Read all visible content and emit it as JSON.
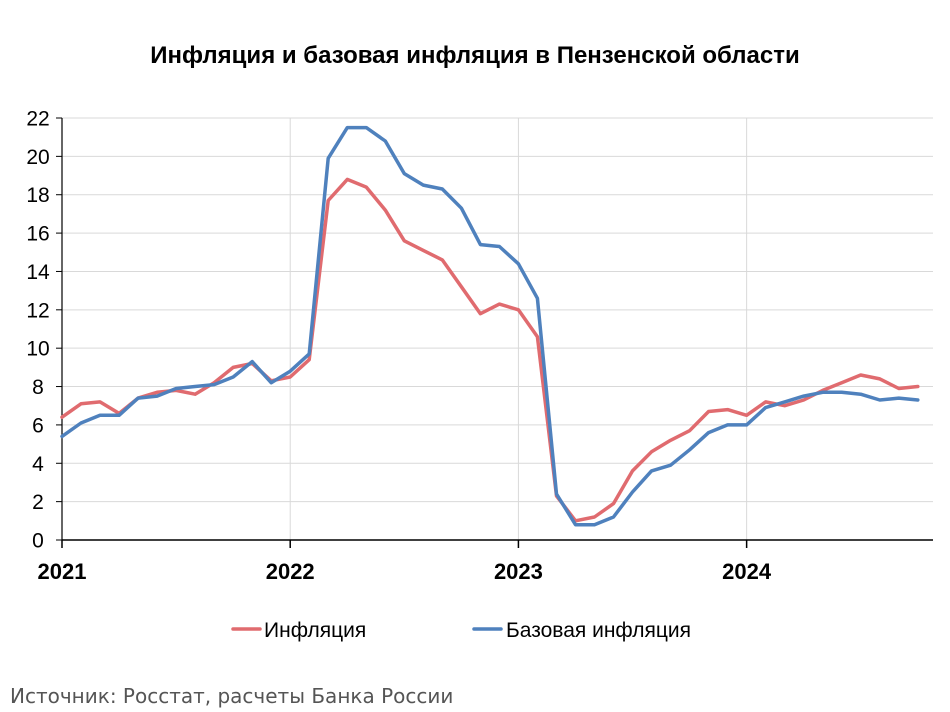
{
  "chart_data": {
    "type": "line",
    "title": "Инфляция и базовая инфляция в Пензенской области",
    "xlabel": "",
    "ylabel": "",
    "ylim": [
      0,
      22
    ],
    "yticks": [
      "0",
      "2",
      "4",
      "6",
      "8",
      "10",
      "12",
      "14",
      "16",
      "18",
      "20",
      "22"
    ],
    "xticks": [
      {
        "label": "2021",
        "value": "2021-01"
      },
      {
        "label": "2022",
        "value": "2022-01"
      },
      {
        "label": "2023",
        "value": "2023-01"
      },
      {
        "label": "2024",
        "value": "2024-01"
      }
    ],
    "x": [
      "2021-01",
      "2021-02",
      "2021-03",
      "2021-04",
      "2021-05",
      "2021-06",
      "2021-07",
      "2021-08",
      "2021-09",
      "2021-10",
      "2021-11",
      "2021-12",
      "2022-01",
      "2022-02",
      "2022-03",
      "2022-04",
      "2022-05",
      "2022-06",
      "2022-07",
      "2022-08",
      "2022-09",
      "2022-10",
      "2022-11",
      "2022-12",
      "2023-01",
      "2023-02",
      "2023-03",
      "2023-04",
      "2023-05",
      "2023-06",
      "2023-07",
      "2023-08",
      "2023-09",
      "2023-10",
      "2023-11",
      "2023-12",
      "2024-01",
      "2024-02",
      "2024-03",
      "2024-04",
      "2024-05",
      "2024-06",
      "2024-07",
      "2024-08",
      "2024-09",
      "2024-10"
    ],
    "grid": "vertical and horizontal",
    "legend_position": "bottom",
    "series": [
      {
        "name": "Инфляция",
        "color": "#e06b6f",
        "values": [
          6.4,
          7.1,
          7.2,
          6.6,
          7.4,
          7.7,
          7.8,
          7.6,
          8.2,
          9.0,
          9.2,
          8.3,
          8.5,
          9.4,
          17.7,
          18.8,
          18.4,
          17.2,
          15.6,
          15.1,
          14.6,
          13.2,
          11.8,
          12.3,
          12.0,
          10.6,
          2.3,
          1.0,
          1.2,
          1.9,
          3.6,
          4.6,
          5.2,
          5.7,
          6.7,
          6.8,
          6.5,
          7.2,
          7.0,
          7.3,
          7.8,
          8.2,
          8.6,
          8.4,
          7.9,
          8.0
        ]
      },
      {
        "name": "Базовая инфляция",
        "color": "#4f81bd",
        "values": [
          5.4,
          6.1,
          6.5,
          6.5,
          7.4,
          7.5,
          7.9,
          8.0,
          8.1,
          8.5,
          9.3,
          8.2,
          8.8,
          9.7,
          19.9,
          21.5,
          21.5,
          20.8,
          19.1,
          18.5,
          18.3,
          17.3,
          15.4,
          15.3,
          14.4,
          12.6,
          2.4,
          0.8,
          0.8,
          1.2,
          2.5,
          3.6,
          3.9,
          4.7,
          5.6,
          6.0,
          6.0,
          6.9,
          7.2,
          7.5,
          7.7,
          7.7,
          7.6,
          7.3,
          7.4,
          7.3
        ]
      }
    ]
  },
  "source_text": "Источник: Росстат, расчеты Банка России"
}
